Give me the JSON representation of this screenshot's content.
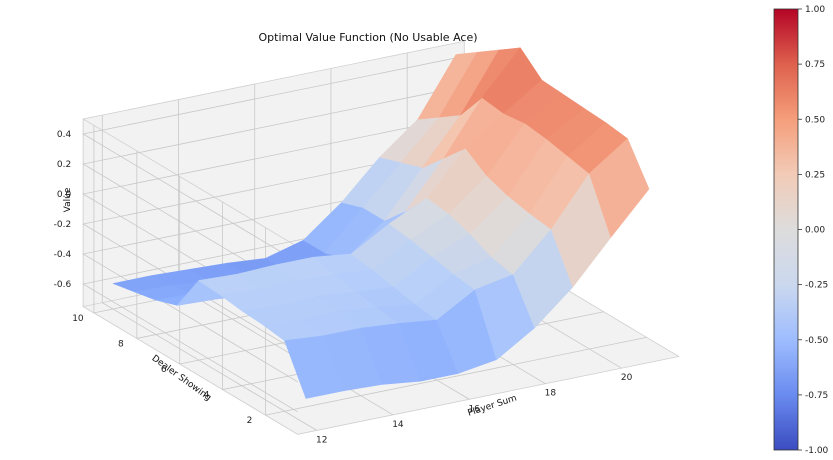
{
  "chart_data": {
    "type": "surface3d",
    "title": "Optimal Value Function (No Usable Ace)",
    "xlabel": "Player Sum",
    "ylabel": "Dealer Showing",
    "zlabel": "Value",
    "x": [
      12,
      13,
      14,
      15,
      16,
      17,
      18,
      19,
      20,
      21
    ],
    "y": [
      1,
      2,
      3,
      4,
      5,
      6,
      7,
      8,
      9,
      10
    ],
    "x_ticks": [
      "12",
      "14",
      "16",
      "18",
      "20"
    ],
    "y_ticks": [
      "2",
      "4",
      "6",
      "8",
      "10"
    ],
    "z_ticks": [
      "-0.6",
      "-0.4",
      "-0.2",
      "0.0",
      "0.2",
      "0.4"
    ],
    "zlim": [
      -0.75,
      0.5
    ],
    "grid": true,
    "colormap": "coolwarm",
    "colorbar": {
      "range": [
        -1.0,
        1.0
      ],
      "ticks": [
        "-1.00",
        "-0.75",
        "-0.50",
        "-0.25",
        "0.00",
        "0.25",
        "0.50",
        "0.75",
        "1.00"
      ],
      "colors": [
        "#3b4cc0",
        "#6a8bef",
        "#9ebdff",
        "#cbd8ee",
        "#dddcdc",
        "#f2cbb7",
        "#f59e7b",
        "#de614d",
        "#b40426"
      ]
    },
    "z": [
      [
        -0.58,
        -0.58,
        -0.59,
        -0.62,
        -0.62,
        -0.58,
        -0.42,
        -0.2,
        0.08,
        0.35
      ],
      [
        -0.28,
        -0.3,
        -0.3,
        -0.32,
        -0.35,
        -0.2,
        -0.15,
        0.1,
        0.42,
        0.6
      ],
      [
        -0.26,
        -0.28,
        -0.27,
        -0.3,
        -0.33,
        -0.18,
        -0.12,
        0.12,
        0.45,
        0.62
      ],
      [
        -0.25,
        -0.27,
        -0.26,
        -0.28,
        -0.3,
        -0.15,
        -0.05,
        0.15,
        0.48,
        0.63
      ],
      [
        -0.23,
        -0.25,
        -0.24,
        -0.25,
        -0.27,
        -0.12,
        0.0,
        0.2,
        0.5,
        0.64
      ],
      [
        -0.22,
        -0.23,
        -0.22,
        -0.22,
        -0.25,
        -0.1,
        0.02,
        0.3,
        0.48,
        0.65
      ],
      [
        -0.47,
        -0.48,
        -0.5,
        -0.52,
        -0.55,
        -0.45,
        -0.15,
        0.15,
        0.5,
        0.78
      ],
      [
        -0.52,
        -0.53,
        -0.55,
        -0.57,
        -0.6,
        -0.5,
        -0.3,
        0.0,
        0.3,
        0.68
      ],
      [
        -0.55,
        -0.56,
        -0.58,
        -0.6,
        -0.62,
        -0.55,
        -0.3,
        -0.05,
        0.2,
        0.58
      ],
      [
        -0.58,
        -0.58,
        -0.59,
        -0.6,
        -0.62,
        -0.55,
        -0.35,
        -0.1,
        0.1,
        0.48
      ]
    ]
  }
}
